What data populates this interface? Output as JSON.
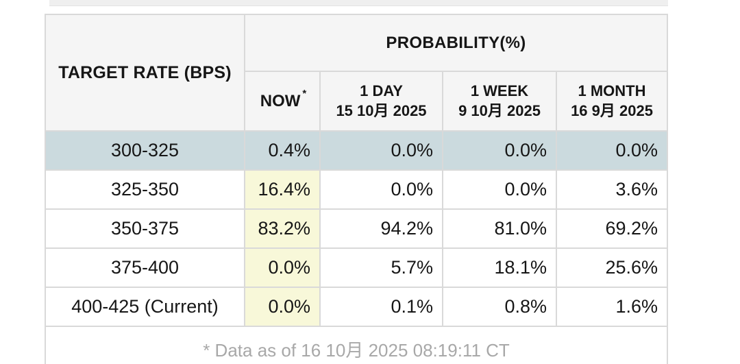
{
  "table": {
    "corner_header": "TARGET RATE (BPS)",
    "prob_header": "PROBABILITY(%)",
    "columns": [
      {
        "label": "NOW",
        "sup": "*",
        "sub": ""
      },
      {
        "label": "1 DAY",
        "sub": "15 10月 2025"
      },
      {
        "label": "1 WEEK",
        "sub": "9 10月 2025"
      },
      {
        "label": "1 MONTH",
        "sub": "16 9月 2025"
      }
    ],
    "rows": [
      {
        "rate": "300-325",
        "values": [
          "0.4%",
          "0.0%",
          "0.0%",
          "0.0%"
        ],
        "highlighted": true
      },
      {
        "rate": "325-350",
        "values": [
          "16.4%",
          "0.0%",
          "0.0%",
          "3.6%"
        ],
        "highlighted": false
      },
      {
        "rate": "350-375",
        "values": [
          "83.2%",
          "94.2%",
          "81.0%",
          "69.2%"
        ],
        "highlighted": false
      },
      {
        "rate": "375-400",
        "values": [
          "0.0%",
          "5.7%",
          "18.1%",
          "25.6%"
        ],
        "highlighted": false
      },
      {
        "rate": "400-425 (Current)",
        "values": [
          "0.0%",
          "0.1%",
          "0.8%",
          "1.6%"
        ],
        "highlighted": false
      }
    ],
    "footnote": "* Data as of 16 10月 2025 08:19:11 CT"
  },
  "colors": {
    "highlight_row_bg": "#cbdade",
    "now_column_bg": "#f8f8d9",
    "header_bg": "#f5f5f5",
    "border": "#d9d9d9",
    "footnote_text": "#a8a8a8",
    "text": "#161616"
  }
}
